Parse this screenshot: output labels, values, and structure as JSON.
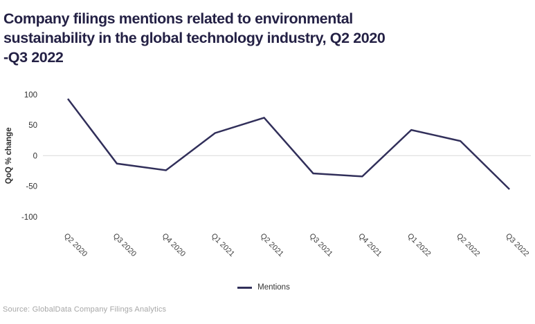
{
  "header": {
    "title_lines": [
      "Company filings mentions related to environmental",
      "sustainability in the global technology industry, Q2 2020",
      "-Q3 2022"
    ]
  },
  "chart_data": {
    "type": "line",
    "title": "Company filings mentions related to environmental sustainability in the global technology industry, Q2 2020 -Q3 2022",
    "categories": [
      "Q2 2020",
      "Q3 2020",
      "Q4 2020",
      "Q1 2021",
      "Q2 2021",
      "Q3 2021",
      "Q4 2021",
      "Q1 2022",
      "Q2 2022",
      "Q3 2022"
    ],
    "series": [
      {
        "name": "Mentions",
        "values": [
          93,
          -13,
          -24,
          37,
          62,
          -29,
          -34,
          42,
          24,
          -55
        ]
      }
    ],
    "xlabel": "",
    "ylabel": "QoQ % change",
    "ylim": [
      -100,
      100
    ],
    "yticks": [
      100,
      50,
      0,
      -50,
      -100
    ],
    "grid": "zero-line-only",
    "legend_position": "bottom-center",
    "x_label_rotation_deg": 45
  },
  "legend": {
    "label": "Mentions"
  },
  "footer": {
    "source": "Source: GlobalData Company Filings Analytics"
  },
  "colors": {
    "title": "#242145",
    "line": "#312f5a",
    "gridline": "#d9d9d9",
    "y_tick_text": "#303030",
    "x_tick_text": "#404040",
    "source_text": "#a6a6a6",
    "background": "#ffffff"
  }
}
